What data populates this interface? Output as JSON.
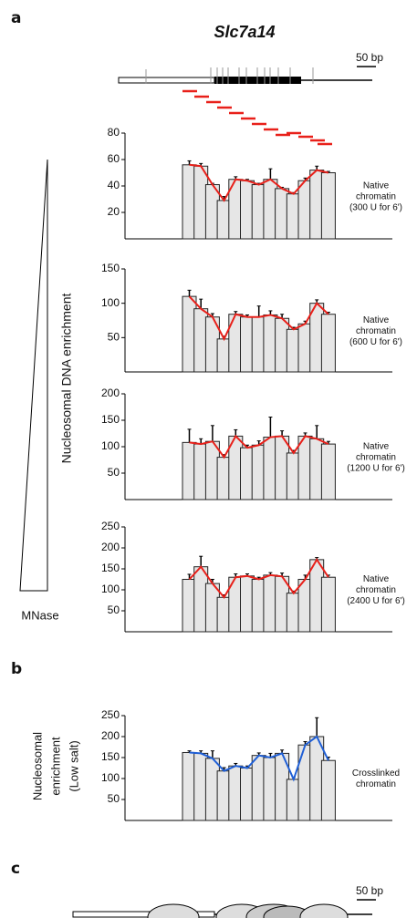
{
  "panel_labels": [
    "a",
    "b",
    "c"
  ],
  "gene": {
    "title": "Slc7a14",
    "scale_bar": "50 bp"
  },
  "panel_c_scale_bar": "50 bp",
  "y_axis_label": "Nucleosomal DNA enrichment",
  "mnase_label": "MNase",
  "chart_data": [
    {
      "type": "bar",
      "ylim": [
        0,
        80
      ],
      "yticks": [
        20,
        40,
        60,
        80
      ],
      "bar_color": "#e6e6e6",
      "line_color": "#e8201a",
      "values": [
        56,
        55,
        41,
        29,
        45,
        44,
        41,
        45,
        38,
        34,
        44,
        52,
        50
      ],
      "errors": [
        3,
        2,
        1,
        3,
        2,
        1,
        1,
        8,
        1,
        1,
        2,
        3,
        1
      ],
      "side_label": [
        "Native",
        "chromatin",
        "(300 U for 6')"
      ]
    },
    {
      "type": "bar",
      "ylim": [
        0,
        150
      ],
      "yticks": [
        50,
        100,
        150
      ],
      "bar_color": "#e6e6e6",
      "line_color": "#e8201a",
      "values": [
        110,
        92,
        80,
        48,
        84,
        80,
        80,
        83,
        78,
        62,
        70,
        100,
        84
      ],
      "errors": [
        9,
        14,
        5,
        4,
        4,
        3,
        16,
        6,
        6,
        3,
        4,
        5,
        3
      ],
      "side_label": [
        "Native",
        "chromatin",
        "(600 U for 6')"
      ]
    },
    {
      "type": "bar",
      "ylim": [
        0,
        200
      ],
      "yticks": [
        50,
        100,
        150,
        200
      ],
      "bar_color": "#e6e6e6",
      "line_color": "#e8201a",
      "values": [
        108,
        105,
        110,
        80,
        120,
        98,
        103,
        118,
        120,
        88,
        120,
        115,
        105
      ],
      "errors": [
        25,
        10,
        30,
        5,
        12,
        5,
        8,
        38,
        10,
        5,
        6,
        25,
        5
      ],
      "side_label": [
        "Native",
        "chromatin",
        "(1200 U for 6')"
      ]
    },
    {
      "type": "bar",
      "ylim": [
        0,
        250
      ],
      "yticks": [
        50,
        100,
        150,
        200,
        250
      ],
      "bar_color": "#e6e6e6",
      "line_color": "#e8201a",
      "values": [
        125,
        155,
        115,
        82,
        130,
        133,
        125,
        135,
        132,
        92,
        125,
        172,
        130
      ],
      "errors": [
        12,
        25,
        10,
        6,
        8,
        5,
        5,
        6,
        8,
        5,
        10,
        5,
        5
      ],
      "side_label": [
        "Native",
        "chromatin",
        "(2400 U for 6')"
      ]
    },
    {
      "type": "bar",
      "ylim": [
        0,
        250
      ],
      "yticks": [
        50,
        100,
        150,
        200,
        250
      ],
      "bar_color": "#e6e6e6",
      "line_color": "#1f5fd6",
      "values": [
        162,
        160,
        148,
        118,
        130,
        125,
        155,
        150,
        160,
        98,
        180,
        200,
        143
      ],
      "errors": [
        4,
        6,
        18,
        8,
        6,
        5,
        6,
        10,
        8,
        5,
        8,
        45,
        8
      ],
      "side_label": [
        "Crosslinked",
        "chromatin"
      ],
      "ylabel": [
        "Nucleosomal",
        "enrichment",
        "(Low salt)"
      ]
    }
  ]
}
